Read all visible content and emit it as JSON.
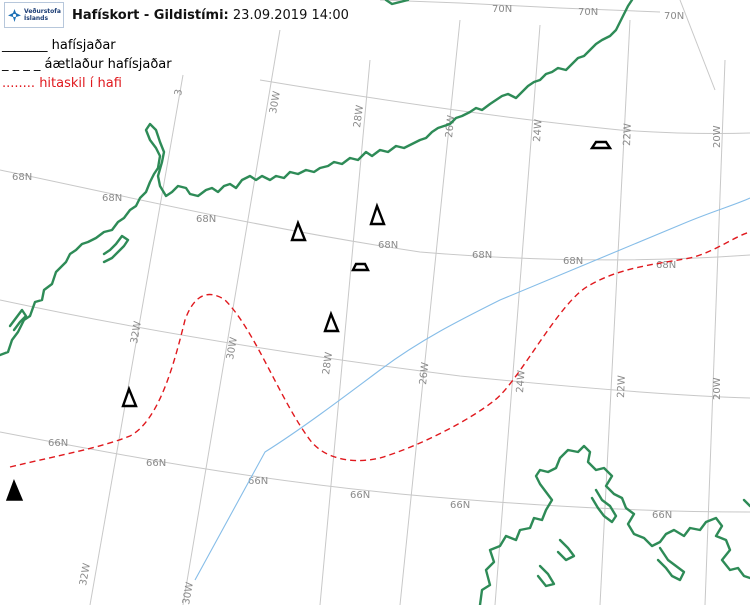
{
  "header": {
    "logo_line1": "Veðurstofa",
    "logo_line2": "Íslands",
    "title_main": "Hafískort - Gildistími:",
    "title_time": "23.09.2019 14:00"
  },
  "legend": {
    "ice_edge": "_______ hafísjaðar",
    "estimated_ice_edge": "_ _ _ _ áætlaður hafísjaðar",
    "ocean_front": "........ hitaskil í hafi"
  },
  "grid_labels": {
    "lat_70n_a": "70N",
    "lat_70n_b": "70N",
    "lat_70n_c": "70N",
    "lat_68n_a": "68N",
    "lat_68n_b": "68N",
    "lat_68n_c": "68N",
    "lat_68n_d": "68N",
    "lat_68n_e": "68N",
    "lat_68n_f": "68N",
    "lat_66n_a": "66N",
    "lat_66n_b": "66N",
    "lat_66n_c": "66N",
    "lat_66n_d": "66N",
    "lat_66n_e": "66N",
    "lat_66n_f": "66N",
    "lon_32w_top": "3",
    "lon_30w_top": "30W",
    "lon_28w_top": "28W",
    "lon_26w_top": "26W",
    "lon_24w_top": "24W",
    "lon_22w_top": "22W",
    "lon_20w_top": "20W",
    "lon_32w_mid": "32W",
    "lon_30w_mid": "30W",
    "lon_28w_mid": "28W",
    "lon_26w_mid": "26W",
    "lon_24w_mid": "24W",
    "lon_22w_mid": "22W",
    "lon_20w_mid": "20W",
    "lon_32w_bot": "32W",
    "lon_30w_bot": "30W"
  },
  "colors": {
    "coastline": "#2e8b57",
    "ocean_front": "#e0191e",
    "blue_line": "#86bde8",
    "grid": "#c8c8c8"
  },
  "symbols": [
    "iceberg-triangle",
    "iceberg-triangle",
    "iceberg-triangle",
    "iceberg-triangle",
    "iceberg-trapezoid",
    "iceberg-trapezoid",
    "iceberg-triangle-filled"
  ]
}
